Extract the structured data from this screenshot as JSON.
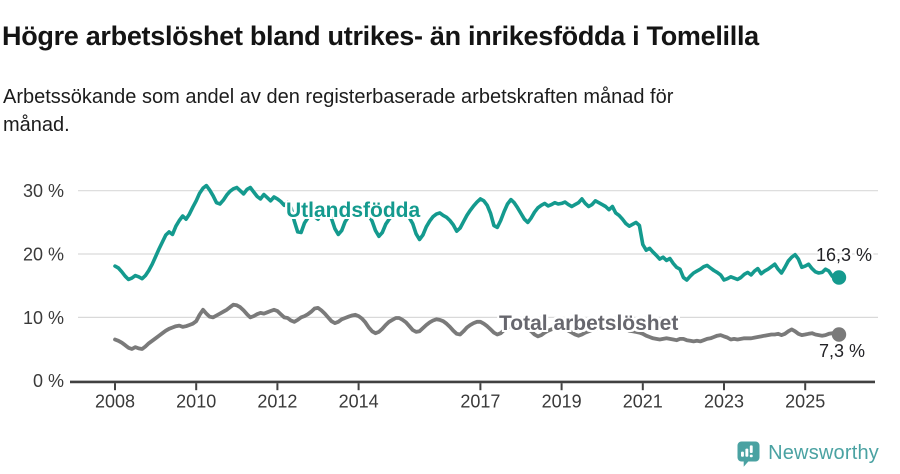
{
  "header": {
    "title": "Högre arbetslöshet bland utrikes- än inrikesfödda i Tomelilla",
    "subtitle": "Arbetssökande som andel av den registerbaserade arbetskraften månad för\nmånad."
  },
  "chart_data": {
    "type": "line",
    "title": "Högre arbetslöshet bland utrikes- än inrikesfödda i Tomelilla",
    "x_axis": {
      "frequency": "monthly",
      "start_year": 2008,
      "start_month": 1,
      "end": "2025-11",
      "tick_years": [
        2008,
        2010,
        2012,
        2014,
        2017,
        2019,
        2021,
        2023,
        2025
      ],
      "tick_labels": [
        "2008",
        "2010",
        "2012",
        "2014",
        "2017",
        "2019",
        "2021",
        "2023",
        "2025"
      ]
    },
    "y_axis": {
      "unit": "%",
      "ticks": [
        0,
        10,
        20,
        30
      ],
      "tick_labels": [
        "0 %",
        "10 %",
        "20 %",
        "30 %"
      ],
      "range": [
        0,
        32
      ],
      "grid": true,
      "grid_color": "#d9d9d9",
      "axis_color": "#414141"
    },
    "legend_position": "inline-labels",
    "series": [
      {
        "name": "Utlandsfödda",
        "color": "#149a8e",
        "end_label": "16,3 %",
        "end_value": 16.3,
        "values": [
          18.1,
          17.8,
          17.2,
          16.5,
          16.0,
          16.2,
          16.6,
          16.4,
          16.1,
          16.6,
          17.4,
          18.4,
          19.6,
          20.8,
          21.9,
          23.0,
          23.5,
          23.1,
          24.4,
          25.3,
          26.0,
          25.5,
          26.3,
          27.4,
          28.4,
          29.6,
          30.4,
          30.8,
          30.1,
          29.2,
          28.1,
          27.9,
          28.5,
          29.3,
          29.9,
          30.3,
          30.5,
          30.0,
          29.5,
          30.2,
          30.5,
          29.8,
          29.1,
          28.7,
          29.4,
          28.9,
          28.4,
          29.0,
          28.7,
          28.3,
          27.7,
          28.2,
          27.4,
          25.2,
          23.5,
          23.4,
          24.9,
          25.7,
          26.3,
          25.9,
          25.5,
          26.3,
          26.8,
          26.4,
          25.6,
          24.0,
          23.1,
          23.7,
          25.1,
          25.9,
          26.5,
          26.1,
          26.6,
          27.1,
          26.7,
          26.1,
          25.2,
          23.7,
          22.8,
          23.4,
          24.7,
          25.5,
          26.1,
          26.4,
          26.1,
          26.6,
          26.3,
          25.7,
          24.8,
          23.2,
          22.3,
          23.0,
          24.3,
          25.2,
          25.9,
          26.3,
          26.5,
          26.1,
          25.8,
          25.3,
          24.6,
          23.6,
          24.1,
          25.1,
          26.1,
          26.9,
          27.6,
          28.2,
          28.7,
          28.4,
          27.7,
          26.4,
          24.5,
          24.2,
          25.3,
          26.7,
          27.9,
          28.6,
          28.1,
          27.3,
          26.4,
          25.5,
          25.0,
          25.7,
          26.6,
          27.3,
          27.7,
          28.0,
          27.6,
          27.8,
          28.1,
          27.9,
          28.0,
          28.2,
          27.8,
          27.5,
          27.8,
          28.1,
          28.7,
          28.0,
          27.5,
          27.8,
          28.4,
          28.1,
          27.8,
          27.5,
          27.0,
          27.5,
          26.5,
          26.1,
          25.5,
          24.8,
          24.4,
          24.7,
          25.0,
          24.5,
          21.5,
          20.6,
          20.9,
          20.3,
          19.8,
          19.2,
          19.5,
          19.0,
          19.3,
          18.5,
          17.9,
          17.6,
          16.3,
          15.9,
          16.5,
          17.0,
          17.3,
          17.6,
          18.0,
          18.2,
          17.8,
          17.4,
          17.1,
          16.7,
          15.9,
          16.1,
          16.4,
          16.2,
          16.0,
          16.3,
          16.8,
          17.1,
          16.7,
          17.3,
          17.7,
          16.9,
          17.3,
          17.6,
          18.0,
          18.4,
          17.6,
          17.0,
          17.9,
          18.9,
          19.5,
          19.9,
          19.2,
          17.9,
          18.1,
          18.4,
          17.7,
          17.2,
          17.0,
          17.1,
          17.6,
          17.3,
          16.5,
          16.1,
          16.3
        ]
      },
      {
        "name": "Total arbetslöshet",
        "color": "#7a7a7a",
        "label_color": "#67676e",
        "end_label": "7,3 %",
        "end_value": 7.3,
        "values": [
          6.5,
          6.3,
          6.0,
          5.6,
          5.2,
          5.0,
          5.3,
          5.1,
          5.0,
          5.4,
          5.9,
          6.3,
          6.7,
          7.1,
          7.5,
          7.9,
          8.2,
          8.4,
          8.6,
          8.7,
          8.5,
          8.6,
          8.8,
          9.0,
          9.4,
          10.4,
          11.2,
          10.6,
          10.1,
          10.0,
          10.3,
          10.6,
          10.9,
          11.2,
          11.6,
          12.0,
          11.9,
          11.6,
          11.1,
          10.5,
          10.0,
          10.2,
          10.5,
          10.7,
          10.6,
          10.8,
          11.0,
          11.2,
          11.0,
          10.5,
          10.0,
          9.9,
          9.5,
          9.3,
          9.6,
          10.0,
          10.2,
          10.5,
          10.9,
          11.4,
          11.5,
          11.1,
          10.6,
          10.0,
          9.4,
          9.1,
          9.3,
          9.7,
          9.9,
          10.1,
          10.3,
          10.4,
          10.2,
          9.8,
          9.2,
          8.4,
          7.8,
          7.5,
          7.7,
          8.2,
          8.8,
          9.3,
          9.6,
          9.9,
          9.9,
          9.6,
          9.2,
          8.6,
          8.0,
          7.7,
          7.8,
          8.3,
          8.8,
          9.2,
          9.5,
          9.7,
          9.6,
          9.4,
          9.0,
          8.5,
          7.9,
          7.4,
          7.3,
          7.8,
          8.4,
          8.8,
          9.1,
          9.3,
          9.3,
          9.0,
          8.6,
          8.1,
          7.6,
          7.3,
          7.5,
          8.0,
          8.4,
          8.7,
          8.9,
          9.0,
          8.9,
          8.6,
          8.2,
          7.8,
          7.3,
          7.0,
          7.2,
          7.6,
          7.9,
          8.1,
          8.3,
          8.4,
          8.4,
          8.2,
          7.9,
          7.6,
          7.3,
          7.1,
          7.3,
          7.6,
          7.8,
          8.0,
          8.1,
          8.2,
          8.3,
          8.4,
          8.6,
          8.8,
          8.7,
          8.5,
          8.3,
          8.1,
          7.9,
          7.8,
          7.7,
          7.6,
          7.4,
          7.1,
          6.9,
          6.7,
          6.6,
          6.5,
          6.6,
          6.7,
          6.6,
          6.5,
          6.4,
          6.6,
          6.6,
          6.4,
          6.3,
          6.2,
          6.3,
          6.2,
          6.4,
          6.6,
          6.7,
          6.9,
          7.1,
          7.2,
          7.0,
          6.8,
          6.5,
          6.6,
          6.5,
          6.6,
          6.7,
          6.7,
          6.7,
          6.8,
          6.9,
          7.0,
          7.1,
          7.2,
          7.3,
          7.3,
          7.4,
          7.2,
          7.4,
          7.8,
          8.1,
          7.8,
          7.4,
          7.2,
          7.3,
          7.4,
          7.5,
          7.3,
          7.2,
          7.1,
          7.2,
          7.4,
          7.5,
          7.4,
          7.3
        ]
      }
    ]
  },
  "footer": {
    "brand": "Newsworthy",
    "brand_color": "#4aa2a2"
  }
}
